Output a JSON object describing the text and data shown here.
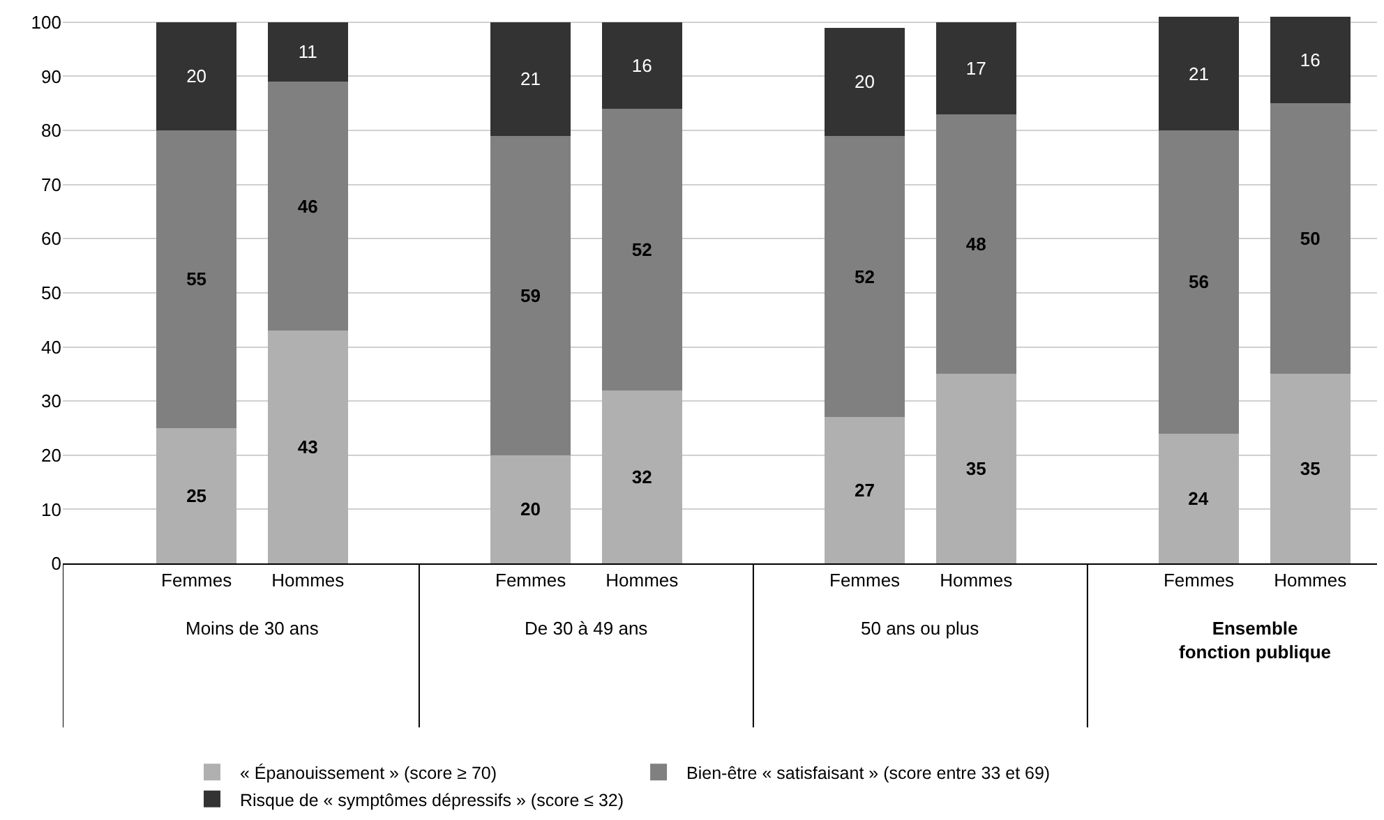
{
  "chart_data": {
    "type": "bar",
    "stacked": true,
    "categories": [
      "Femmes",
      "Hommes",
      "Femmes",
      "Hommes",
      "Femmes",
      "Hommes",
      "Femmes",
      "Hommes"
    ],
    "series": [
      {
        "name": "« Épanouissement » (score ≥ 70)",
        "color": "#b0b0b0",
        "values": [
          25,
          43,
          20,
          32,
          27,
          35,
          24,
          35
        ]
      },
      {
        "name": "Bien-être « satisfaisant » (score entre 33 et 69)",
        "color": "#808080",
        "values": [
          55,
          46,
          59,
          52,
          52,
          48,
          56,
          50
        ]
      },
      {
        "name": "Risque de « symptômes dépressifs » (score ≤ 32)",
        "color": "#333333",
        "values": [
          20,
          11,
          21,
          16,
          20,
          17,
          21,
          16
        ]
      }
    ],
    "annotations": [
      "Moins de 30 ans",
      "De 30 à 49 ans",
      "50 ans ou plus",
      "Ensemble\nfonction publique"
    ],
    "ylim": [
      0,
      101
    ],
    "yticks": [
      0,
      10,
      20,
      30,
      40,
      50,
      60,
      70,
      80,
      90,
      100
    ],
    "grid": "y",
    "data_labels": true,
    "legend": "bottom"
  }
}
